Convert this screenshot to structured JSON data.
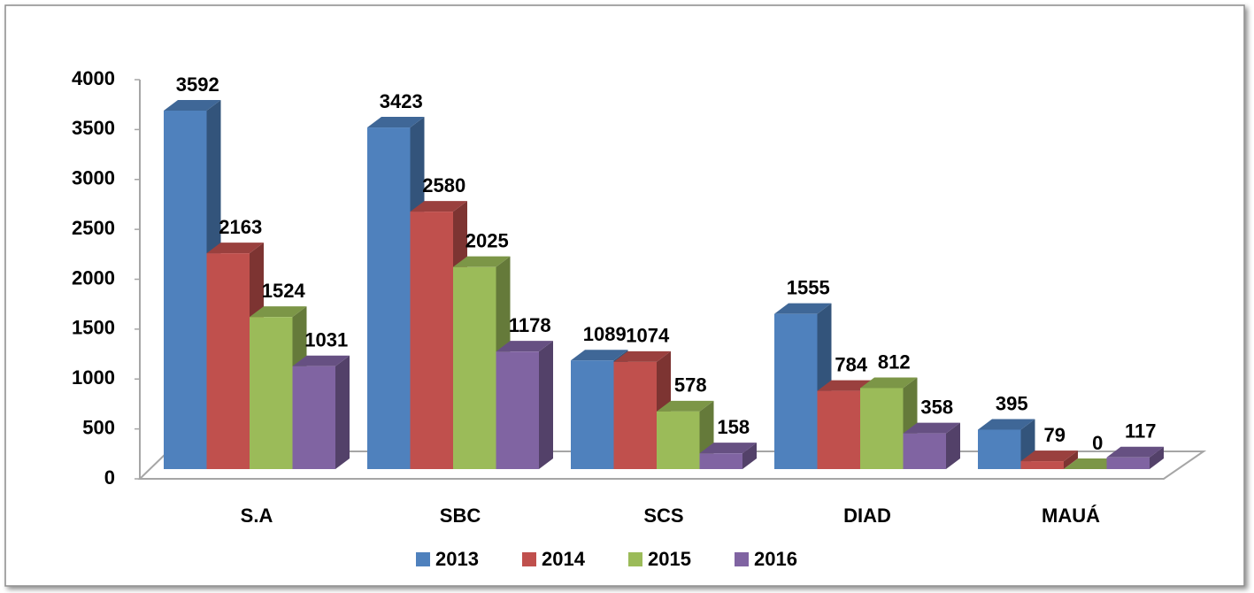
{
  "chart_data": {
    "type": "bar3d",
    "categories": [
      "S.A",
      "SBC",
      "SCS",
      "DIAD",
      "MAUÁ"
    ],
    "series": [
      {
        "name": "2013",
        "color": "#4f81bd",
        "values": [
          3592,
          3423,
          1089,
          1555,
          395
        ]
      },
      {
        "name": "2014",
        "color": "#c0504d",
        "values": [
          2163,
          2580,
          1074,
          784,
          79
        ]
      },
      {
        "name": "2015",
        "color": "#9bbb59",
        "values": [
          1524,
          2025,
          578,
          812,
          0
        ]
      },
      {
        "name": "2016",
        "color": "#8064a2",
        "values": [
          1031,
          1178,
          158,
          358,
          117
        ]
      }
    ],
    "ylim": [
      0,
      4000
    ],
    "yticks": [
      0,
      500,
      1000,
      1500,
      2000,
      2500,
      3000,
      3500,
      4000
    ],
    "grid": false,
    "legend": "bottom",
    "data_labels": true
  }
}
